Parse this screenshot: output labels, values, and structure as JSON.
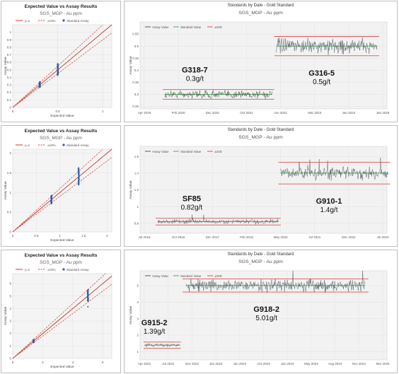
{
  "chart_data": [
    {
      "type": "scatter",
      "title": "Expected Value vs Assay Results",
      "subtitle": "SGS_MGP - Au ppm",
      "legend": [
        "y=x",
        "±10%",
        "Standard Assay"
      ],
      "legend_placement": "top",
      "xlabel": "Expected Value",
      "ylabel": "Assay Value",
      "xlim": [
        0,
        1.1
      ],
      "ylim": [
        0,
        1.1
      ],
      "xticks": [
        "0",
        "0.5",
        "1"
      ],
      "yticks": [
        "0",
        "0.1",
        "0.2",
        "0.3",
        "0.4",
        "0.5",
        "0.6",
        "0.7",
        "0.8",
        "0.9",
        "1"
      ],
      "grid": true,
      "clusters": [
        {
          "x": 0.3,
          "y_min": 0.27,
          "y_max": 0.34
        },
        {
          "x": 0.5,
          "y_min": 0.43,
          "y_max": 0.58
        }
      ]
    },
    {
      "type": "line",
      "title": "Standards by Date - Gold Standard",
      "subtitle": "SGS_MGP - Au ppm",
      "legend": [
        "Assay Value",
        "Standard Value",
        "±2SD"
      ],
      "legend_placement": "top-left",
      "ylabel": "Assay Value",
      "ylim": [
        0.24,
        0.6
      ],
      "yticks": [
        "0.25",
        "0.3",
        "0.35",
        "0.4",
        "0.45",
        "0.5",
        "0.55"
      ],
      "xticks": [
        "Apr 2019",
        "Feb 2020",
        "Dec 2020",
        "Oct 2021",
        "Jun 2022",
        "Mar 2023",
        "Jan 2024",
        "Jan 2025"
      ],
      "grid": true,
      "standards": [
        {
          "name": "G318-7",
          "grade": "0.3g/t",
          "expected": 0.3,
          "lower": 0.28,
          "upper": 0.32,
          "start": "2019-10",
          "end": "2022-04",
          "noise": 0.012
        },
        {
          "name": "G316-5",
          "grade": "0.5g/t",
          "expected": 0.5,
          "lower": 0.46,
          "upper": 0.54,
          "start": "2022-05",
          "end": "2024-11",
          "noise": 0.02
        }
      ]
    },
    {
      "type": "scatter",
      "title": "Expected Value vs Assay Results",
      "subtitle": "SGS_MGP - Au ppm",
      "legend": [
        "y=x",
        "±10%",
        "Standard Assay"
      ],
      "legend_placement": "top",
      "xlabel": "Expected Value",
      "ylabel": "Assay Value",
      "xlim": [
        0,
        2.1
      ],
      "ylim": [
        0,
        2.1
      ],
      "xticks": [
        "0",
        "0.5",
        "1",
        "1.5",
        "2"
      ],
      "yticks": [
        "0",
        "0.5",
        "1",
        "1.5",
        "2"
      ],
      "grid": true,
      "clusters": [
        {
          "x": 0.82,
          "y_min": 0.72,
          "y_max": 0.92
        },
        {
          "x": 1.4,
          "y_min": 1.2,
          "y_max": 1.62
        }
      ]
    },
    {
      "type": "line",
      "title": "Standards by Date - Gold Standard",
      "subtitle": "SGS_MGP - Au ppm",
      "legend": [
        "Assay Value",
        "Standard Value",
        "±2SD"
      ],
      "legend_placement": "top-left",
      "ylabel": "Assay Value",
      "ylim": [
        0.68,
        1.72
      ],
      "yticks": [
        "0.8",
        "1",
        "1.2",
        "1.4",
        "1.6"
      ],
      "xticks": [
        "Jul 2015",
        "Oct 2016",
        "Dec 2017",
        "Feb 2019",
        "May 2020",
        "Jul 2021",
        "Dec 2022",
        "Jul 2024"
      ],
      "grid": true,
      "standards": [
        {
          "name": "SF85",
          "grade": "0.82g/t",
          "expected": 0.82,
          "lower": 0.78,
          "upper": 0.86,
          "start": "2016-01",
          "end": "2020-04",
          "noise": 0.02
        },
        {
          "name": "G910-1",
          "grade": "1.4g/t",
          "expected": 1.4,
          "lower": 1.27,
          "upper": 1.53,
          "start": "2020-05",
          "end": "2024-10",
          "noise": 0.05
        }
      ]
    },
    {
      "type": "scatter",
      "title": "Expected Value vs Assay Results",
      "subtitle": "SGS_MGP - Au ppm",
      "legend": [
        "y=x",
        "±10%",
        "Standard Assay"
      ],
      "legend_placement": "top",
      "xlabel": "Expected Value",
      "ylabel": "Assay Value",
      "xlim": [
        0,
        6.6
      ],
      "ylim": [
        0,
        6.8
      ],
      "xticks": [
        "0",
        "2",
        "4",
        "6"
      ],
      "yticks": [
        "0",
        "1",
        "2",
        "3",
        "4",
        "5",
        "6"
      ],
      "grid": true,
      "clusters": [
        {
          "x": 1.39,
          "y_min": 1.28,
          "y_max": 1.5
        },
        {
          "x": 5.01,
          "y_min": 4.6,
          "y_max": 5.5
        }
      ],
      "outliers": [
        {
          "x": 5.01,
          "y": 4.15
        }
      ]
    },
    {
      "type": "line",
      "title": "Standards by Date - Gold Standard",
      "subtitle": "SGS_MGP - Au ppm",
      "legend": [
        "Assay Value",
        "Standard Value",
        "±2SD"
      ],
      "legend_placement": "top-left",
      "ylabel": "Assay Value",
      "ylim": [
        0.5,
        5.9
      ],
      "yticks": [
        "1",
        "2",
        "3",
        "4",
        "5"
      ],
      "xticks": [
        "Apr 2022",
        "Jul 2022",
        "Nov 2022",
        "Jan 2023",
        "Jun 2023",
        "Oct 2023",
        "Jan 2024",
        "May 2024",
        "Aug 2024",
        "Nov 2024",
        "Mar 2025"
      ],
      "grid": true,
      "standards": [
        {
          "name": "G915-2",
          "grade": "1.39g/t",
          "expected": 1.39,
          "lower": 1.2,
          "upper": 1.58,
          "start": "2022-04",
          "end": "2022-09",
          "noise": 0.07
        },
        {
          "name": "G918-2",
          "grade": "5.01g/t",
          "expected": 5.01,
          "lower": 4.61,
          "upper": 5.41,
          "start": "2022-10",
          "end": "2024-12",
          "noise": 0.25
        }
      ]
    }
  ]
}
